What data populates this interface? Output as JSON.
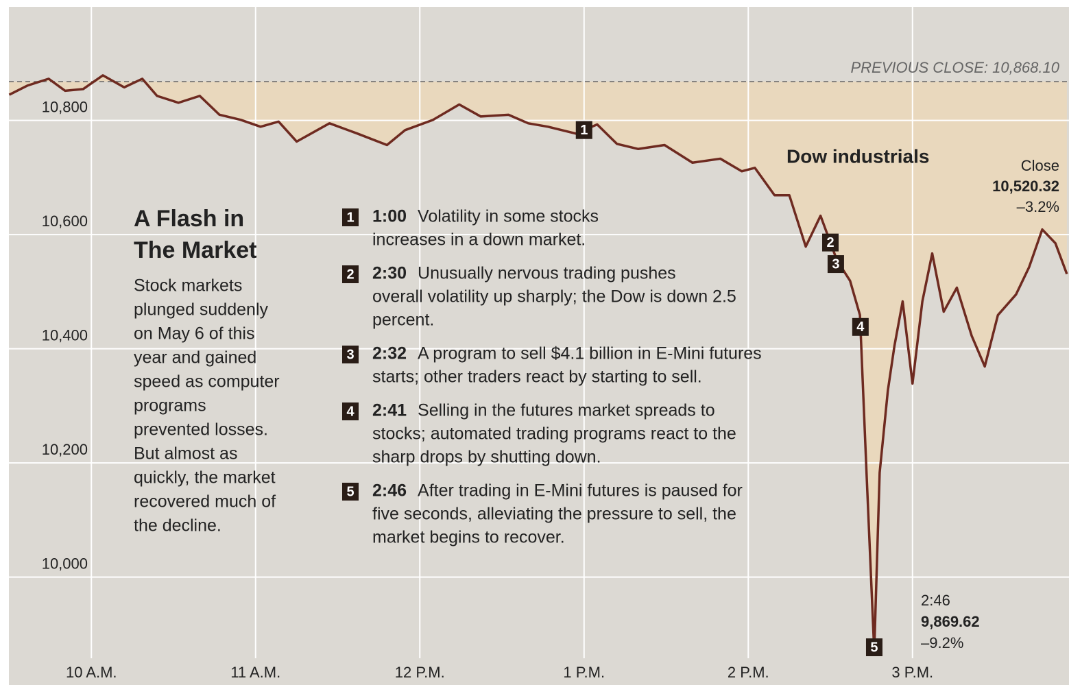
{
  "chart_data": {
    "type": "line",
    "title": [
      "A Flash in",
      "The Market"
    ],
    "description": [
      "Stock markets",
      "plunged suddenly",
      "on May 6 of this",
      "year and gained",
      "speed as computer",
      "programs",
      "prevented losses.",
      "But almost as",
      "quickly, the market",
      "recovered much of",
      "the decline."
    ],
    "series": [
      {
        "name": "Dow industrials",
        "color": "#6e2a20",
        "x": [
          9.5,
          9.61,
          9.74,
          9.84,
          9.95,
          10.07,
          10.2,
          10.31,
          10.4,
          10.53,
          10.66,
          10.78,
          10.91,
          11.03,
          11.14,
          11.25,
          11.45,
          11.62,
          11.8,
          11.91,
          12.08,
          12.24,
          12.37,
          12.54,
          12.66,
          12.78,
          12.95,
          13.08,
          13.2,
          13.33,
          13.49,
          13.66,
          13.83,
          13.96,
          14.04,
          14.16,
          14.25,
          14.35,
          14.44,
          14.54,
          14.62,
          14.68,
          14.72,
          14.767,
          14.8,
          14.85,
          14.89,
          14.94,
          15.0,
          15.06,
          15.12,
          15.19,
          15.27,
          15.36,
          15.44,
          15.52,
          15.63,
          15.71,
          15.79,
          15.87,
          15.94
        ],
        "values": [
          10845,
          10861,
          10873,
          10852,
          10855,
          10879,
          10858,
          10873,
          10843,
          10831,
          10843,
          10810,
          10801,
          10789,
          10798,
          10763,
          10795,
          10777,
          10757,
          10783,
          10801,
          10828,
          10807,
          10810,
          10795,
          10789,
          10777,
          10793,
          10759,
          10750,
          10757,
          10726,
          10733,
          10711,
          10717,
          10669,
          10669,
          10579,
          10633,
          10555,
          10519,
          10459,
          10183,
          9869.62,
          10183,
          10327,
          10405,
          10483,
          10339,
          10483,
          10567,
          10465,
          10507,
          10423,
          10369,
          10459,
          10495,
          10543,
          10609,
          10585,
          10531
        ]
      }
    ],
    "fill_color": "#e9d8bd",
    "background": "#dcd9d3",
    "xlim": [
      9.5,
      15.95
    ],
    "xticks": [
      {
        "value": 10,
        "label": "10 A.M."
      },
      {
        "value": 11,
        "label": "11 A.M."
      },
      {
        "value": 12,
        "label": "12 P.M."
      },
      {
        "value": 13,
        "label": "1 P.M."
      },
      {
        "value": 14,
        "label": "2 P.M."
      },
      {
        "value": 15,
        "label": "3 P.M."
      }
    ],
    "ylim": [
      9811,
      10999
    ],
    "yticks": [
      {
        "value": 10000,
        "label": "10,000"
      },
      {
        "value": 10200,
        "label": "10,200"
      },
      {
        "value": 10400,
        "label": "10,400"
      },
      {
        "value": 10600,
        "label": "10,600"
      },
      {
        "value": 10800,
        "label": "10,800"
      }
    ],
    "grid": true,
    "reference_line": {
      "value": 10868.1,
      "label": "PREVIOUS CLOSE: 10,868.10"
    },
    "close_note": [
      "Close",
      "10,520.32",
      "–3.2%"
    ],
    "low_note": [
      "2:46",
      "9,869.62",
      "–9.2%"
    ],
    "events": [
      {
        "number": "1",
        "time": "1:00",
        "x": 13.0,
        "lines": [
          "Volatility in some stocks",
          "increases in a down market."
        ]
      },
      {
        "number": "2",
        "time": "2:30",
        "x": 14.5,
        "lines": [
          "Unusually nervous trading pushes",
          "overall volatility up sharply; the Dow is down 2.5",
          "percent."
        ]
      },
      {
        "number": "3",
        "time": "2:32",
        "x": 14.533,
        "lines": [
          "A program to sell $4.1 billion in E-Mini futures",
          "starts; other traders react by starting to sell."
        ]
      },
      {
        "number": "4",
        "time": "2:41",
        "x": 14.683,
        "lines": [
          "Selling in the futures market spreads to",
          "stocks; automated trading programs react to the",
          "sharp drops by shutting down."
        ]
      },
      {
        "number": "5",
        "time": "2:46",
        "x": 14.767,
        "lines": [
          "After trading in E-Mini futures is paused for",
          "five seconds, alleviating the pressure to sell, the",
          "market begins to recover."
        ]
      }
    ]
  }
}
